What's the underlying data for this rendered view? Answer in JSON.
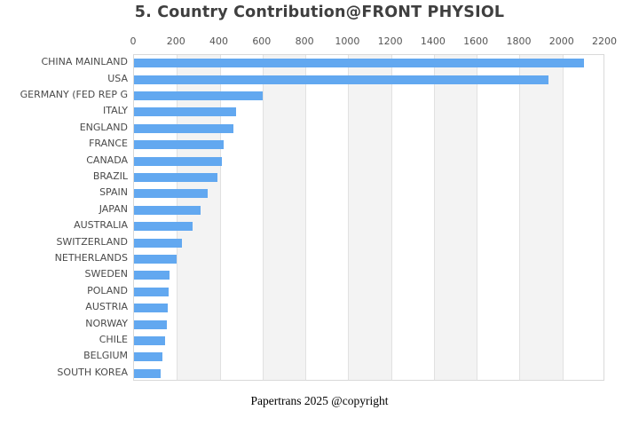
{
  "title": "5. Country Contribution@FRONT PHYSIOL",
  "footer": "Papertrans 2025 @copyright",
  "colors": {
    "bar": "#62a8f0",
    "band": "#f3f3f3",
    "gridline": "#e1e1e1",
    "plot_border": "#d9d9d9",
    "tick_text": "#555555",
    "label_text": "#4a4a4a",
    "title_text": "#3f3f3f"
  },
  "chart_data": {
    "type": "bar",
    "orientation": "horizontal",
    "title": "5. Country Contribution@FRONT PHYSIOL",
    "xlabel": "",
    "ylabel": "",
    "axis_position": "top",
    "xlim": [
      0,
      2200
    ],
    "xticks": [
      0,
      200,
      400,
      600,
      800,
      1000,
      1200,
      1400,
      1600,
      1800,
      2000,
      2200
    ],
    "grid": true,
    "alternating_bands": true,
    "legend": false,
    "categories": [
      "CHINA MAINLAND",
      "USA",
      "GERMANY (FED REP G",
      "ITALY",
      "ENGLAND",
      "FRANCE",
      "CANADA",
      "BRAZIL",
      "SPAIN",
      "JAPAN",
      "AUSTRALIA",
      "SWITZERLAND",
      "NETHERLANDS",
      "SWEDEN",
      "POLAND",
      "AUSTRIA",
      "NORWAY",
      "CHILE",
      "BELGIUM",
      "SOUTH KOREA"
    ],
    "values": [
      2100,
      1935,
      600,
      475,
      465,
      420,
      410,
      390,
      345,
      310,
      272,
      222,
      197,
      165,
      160,
      157,
      152,
      144,
      132,
      124
    ]
  }
}
